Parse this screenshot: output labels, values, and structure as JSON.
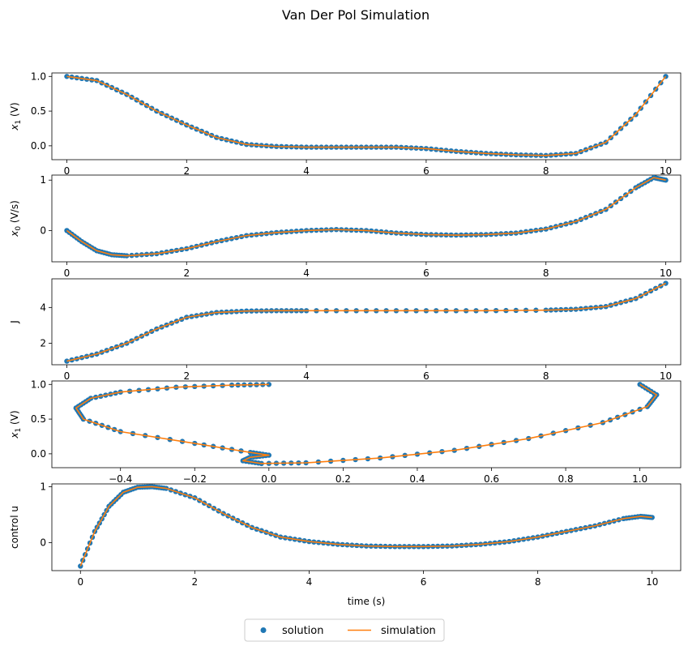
{
  "figure": {
    "title": "Van Der Pol Simulation"
  },
  "legend": {
    "placement": "bottom-center",
    "entries": [
      {
        "label": "solution",
        "marker": "dot",
        "color": "#1f77b4"
      },
      {
        "label": "simulation",
        "marker": "line",
        "color": "#ff7f0e"
      }
    ]
  },
  "chart_data": [
    {
      "type": "scatter",
      "ylabel": "x1 (V)",
      "xlim": [
        -0.25,
        10.25
      ],
      "ylim": [
        -0.2,
        1.05
      ],
      "xticks": [
        0,
        2,
        4,
        6,
        8,
        10
      ],
      "yticks": [
        0.0,
        0.5,
        1.0
      ],
      "ytick_labels": [
        "0.0",
        "0.5",
        "1.0"
      ],
      "x": [
        0,
        0.5,
        1,
        1.5,
        2,
        2.5,
        3,
        3.5,
        4,
        4.5,
        5,
        5.5,
        6,
        6.5,
        7,
        7.5,
        8,
        8.5,
        9,
        9.5,
        10
      ],
      "series": [
        {
          "name": "solution",
          "values": [
            1.0,
            0.94,
            0.74,
            0.5,
            0.3,
            0.12,
            0.02,
            -0.01,
            -0.02,
            -0.02,
            -0.02,
            -0.02,
            -0.04,
            -0.08,
            -0.11,
            -0.13,
            -0.14,
            -0.11,
            0.05,
            0.45,
            1.0
          ]
        },
        {
          "name": "simulation",
          "values": [
            1.0,
            0.94,
            0.74,
            0.5,
            0.3,
            0.12,
            0.02,
            -0.01,
            -0.02,
            -0.02,
            -0.02,
            -0.02,
            -0.04,
            -0.08,
            -0.11,
            -0.13,
            -0.14,
            -0.11,
            0.05,
            0.45,
            1.0
          ]
        }
      ]
    },
    {
      "type": "scatter",
      "ylabel": "x0 (V/s)",
      "xlim": [
        -0.25,
        10.25
      ],
      "ylim": [
        -0.62,
        1.1
      ],
      "xticks": [
        0,
        2,
        4,
        6,
        8,
        10
      ],
      "yticks": [
        0,
        1
      ],
      "ytick_labels": [
        "0",
        "1"
      ],
      "x": [
        0,
        0.25,
        0.5,
        0.75,
        1,
        1.5,
        2,
        2.5,
        3,
        3.5,
        4,
        4.5,
        5,
        5.5,
        6,
        6.5,
        7,
        7.5,
        8,
        8.5,
        9,
        9.5,
        9.8,
        10
      ],
      "series": [
        {
          "name": "solution",
          "values": [
            0,
            -0.22,
            -0.4,
            -0.48,
            -0.5,
            -0.46,
            -0.36,
            -0.22,
            -0.1,
            -0.04,
            0.0,
            0.02,
            0.0,
            -0.05,
            -0.08,
            -0.09,
            -0.08,
            -0.05,
            0.03,
            0.18,
            0.42,
            0.85,
            1.05,
            1.0
          ]
        },
        {
          "name": "simulation",
          "values": [
            0,
            -0.22,
            -0.4,
            -0.48,
            -0.5,
            -0.46,
            -0.36,
            -0.22,
            -0.1,
            -0.04,
            0.0,
            0.02,
            0.0,
            -0.05,
            -0.08,
            -0.09,
            -0.08,
            -0.05,
            0.03,
            0.18,
            0.42,
            0.85,
            1.05,
            1.0
          ]
        }
      ]
    },
    {
      "type": "scatter",
      "ylabel": "J",
      "xlim": [
        -0.25,
        10.25
      ],
      "ylim": [
        0.8,
        5.6
      ],
      "xticks": [
        0,
        2,
        4,
        6,
        8,
        10
      ],
      "yticks": [
        2,
        4
      ],
      "ytick_labels": [
        "2",
        "4"
      ],
      "x": [
        0,
        0.5,
        1,
        1.5,
        2,
        2.5,
        3,
        3.5,
        4,
        5,
        6,
        7,
        8,
        8.5,
        9,
        9.5,
        10
      ],
      "series": [
        {
          "name": "solution",
          "values": [
            1.0,
            1.4,
            2.0,
            2.8,
            3.45,
            3.72,
            3.8,
            3.82,
            3.82,
            3.82,
            3.82,
            3.82,
            3.85,
            3.9,
            4.05,
            4.5,
            5.35
          ]
        },
        {
          "name": "simulation",
          "values": [
            1.0,
            1.4,
            2.0,
            2.8,
            3.45,
            3.72,
            3.8,
            3.82,
            3.82,
            3.82,
            3.82,
            3.82,
            3.85,
            3.9,
            4.05,
            4.5,
            5.35
          ]
        }
      ]
    },
    {
      "type": "scatter",
      "ylabel": "x1 (V)",
      "xlim": [
        -0.585,
        1.11
      ],
      "ylim": [
        -0.2,
        1.05
      ],
      "xticks": [
        -0.4,
        -0.2,
        0.0,
        0.2,
        0.4,
        0.6,
        0.8,
        1.0
      ],
      "xtick_labels": [
        "−0.4",
        "−0.2",
        "0.0",
        "0.2",
        "0.4",
        "0.6",
        "0.8",
        "1.0"
      ],
      "yticks": [
        0.0,
        0.5,
        1.0
      ],
      "ytick_labels": [
        "0.0",
        "0.5",
        "1.0"
      ],
      "x": [
        0.0,
        -0.1,
        -0.25,
        -0.4,
        -0.48,
        -0.52,
        -0.5,
        -0.4,
        -0.2,
        -0.05,
        0.0,
        -0.05,
        -0.07,
        -0.02,
        0.1,
        0.3,
        0.5,
        0.7,
        0.9,
        1.02,
        1.045,
        1.0
      ],
      "series": [
        {
          "name": "solution",
          "values": [
            1.0,
            0.99,
            0.96,
            0.89,
            0.8,
            0.66,
            0.5,
            0.32,
            0.15,
            0.02,
            -0.02,
            -0.05,
            -0.1,
            -0.14,
            -0.13,
            -0.06,
            0.05,
            0.22,
            0.45,
            0.68,
            0.85,
            1.0
          ]
        },
        {
          "name": "simulation",
          "values": [
            1.0,
            0.99,
            0.96,
            0.89,
            0.8,
            0.66,
            0.5,
            0.32,
            0.15,
            0.02,
            -0.02,
            -0.05,
            -0.1,
            -0.14,
            -0.13,
            -0.06,
            0.05,
            0.22,
            0.45,
            0.68,
            0.85,
            1.0
          ]
        }
      ]
    },
    {
      "type": "scatter",
      "ylabel": "control u",
      "xlabel": "time (s)",
      "xlim": [
        -0.5,
        10.5
      ],
      "ylim": [
        -0.5,
        1.05
      ],
      "xticks": [
        0,
        2,
        4,
        6,
        8,
        10
      ],
      "yticks": [
        0,
        1
      ],
      "ytick_labels": [
        "0",
        "1"
      ],
      "x": [
        0,
        0.25,
        0.5,
        0.75,
        1,
        1.25,
        1.5,
        2,
        2.5,
        3,
        3.5,
        4,
        4.5,
        5,
        5.5,
        6,
        6.5,
        7,
        7.5,
        8,
        8.5,
        9,
        9.5,
        9.8,
        10
      ],
      "series": [
        {
          "name": "solution",
          "values": [
            -0.42,
            0.2,
            0.65,
            0.9,
            0.99,
            1.0,
            0.97,
            0.8,
            0.52,
            0.27,
            0.1,
            0.02,
            -0.03,
            -0.06,
            -0.07,
            -0.07,
            -0.06,
            -0.03,
            0.02,
            0.1,
            0.2,
            0.3,
            0.43,
            0.47,
            0.45
          ]
        },
        {
          "name": "simulation",
          "values": [
            -0.42,
            0.2,
            0.65,
            0.9,
            0.99,
            1.0,
            0.97,
            0.8,
            0.52,
            0.27,
            0.1,
            0.02,
            -0.03,
            -0.06,
            -0.07,
            -0.07,
            -0.06,
            -0.03,
            0.02,
            0.1,
            0.2,
            0.3,
            0.43,
            0.47,
            0.45
          ]
        }
      ]
    }
  ]
}
